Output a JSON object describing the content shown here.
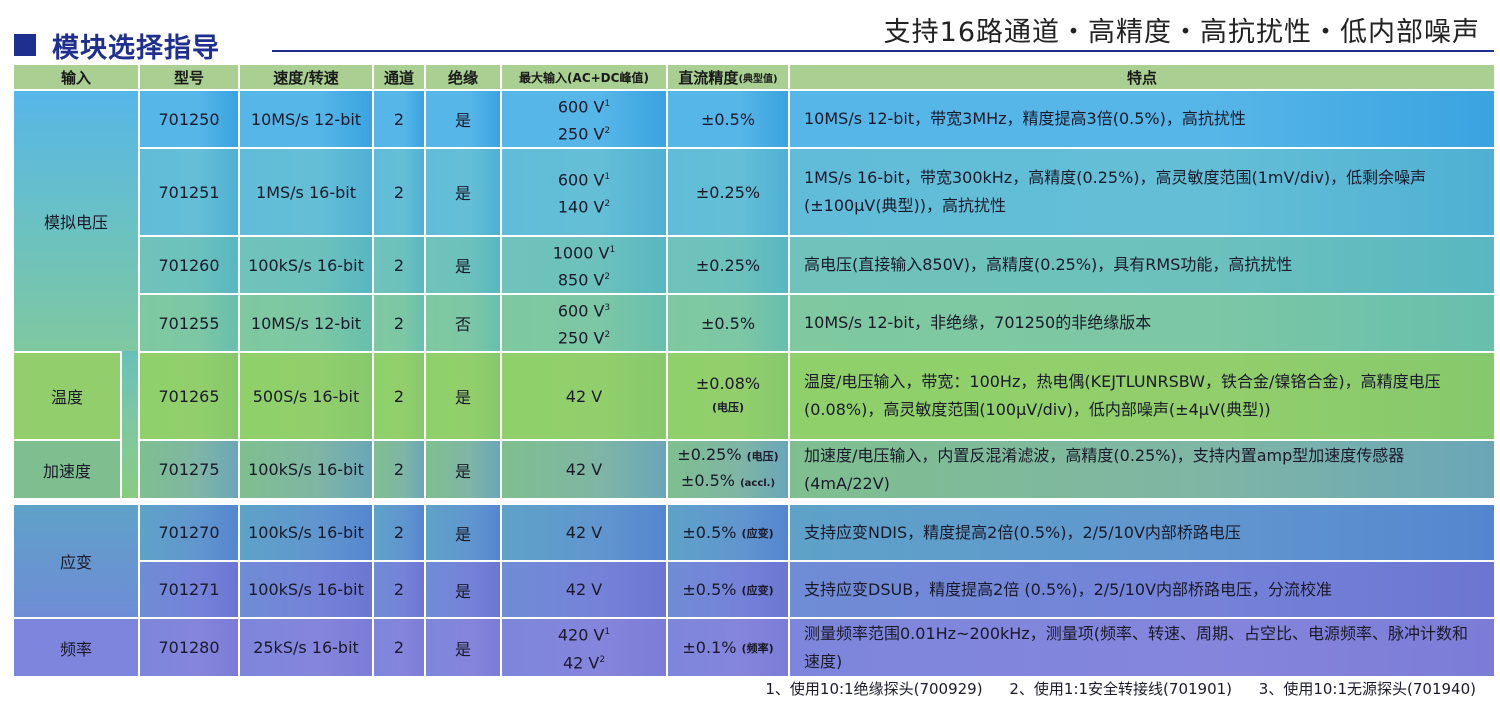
{
  "header": {
    "title": "模块选择指导",
    "slogan": "支持16路通道・高精度・高抗扰性・低内部噪声"
  },
  "columns": [
    "输入",
    "型号",
    "速度/转速",
    "通道",
    "绝缘",
    "最大输入(AC+DC峰值)",
    "直流精度",
    "(典型值)",
    "特点"
  ],
  "inputs": {
    "analog": "模拟电压",
    "temp": "温度",
    "accel": "加速度",
    "strain": "应变",
    "freq": "频率"
  },
  "rows": [
    {
      "model": "701250",
      "speed": "10MS/s 12-bit",
      "ch": "2",
      "iso": "是",
      "max1": "600 V",
      "sup1": "1",
      "max2": "250 V",
      "sup2": "2",
      "acc": "±0.5%",
      "feat": "10MS/s 12-bit，带宽3MHz，精度提高3倍(0.5%)，高抗扰性"
    },
    {
      "model": "701251",
      "speed": "1MS/s 16-bit",
      "ch": "2",
      "iso": "是",
      "max1": "600 V",
      "sup1": "1",
      "max2": "140 V",
      "sup2": "2",
      "acc": "±0.25%",
      "feat": "1MS/s 16-bit，带宽300kHz，高精度(0.25%)，高灵敏度范围(1mV/div)，低剩余噪声(±100μV(典型))，高抗扰性"
    },
    {
      "model": "701260",
      "speed": "100kS/s 16-bit",
      "ch": "2",
      "iso": "是",
      "max1": "1000 V",
      "sup1": "1",
      "max2": "850 V",
      "sup2": "2",
      "acc": "±0.25%",
      "feat": "高电压(直接输入850V)，高精度(0.25%)，具有RMS功能，高抗扰性"
    },
    {
      "model": "701255",
      "speed": "10MS/s 12-bit",
      "ch": "2",
      "iso": "否",
      "max1": "600 V",
      "sup1": "3",
      "max2": "250 V",
      "sup2": "2",
      "acc": "±0.5%",
      "feat": "10MS/s 12-bit，非绝缘，701250的非绝缘版本"
    },
    {
      "model": "701265",
      "speed": "500S/s 16-bit",
      "ch": "2",
      "iso": "是",
      "max": "42 V",
      "acc": "±0.08%",
      "accNote": "(电压)",
      "feat": "温度/电压输入，带宽：100Hz，热电偶(KEJTLUNRSBW，铁合金/镍铬合金)，高精度电压(0.08%)，高灵敏度范围(100μV/div)，低内部噪声(±4μV(典型))"
    },
    {
      "model": "701275",
      "speed": "100kS/s 16-bit",
      "ch": "2",
      "iso": "是",
      "max": "42 V",
      "acc1": "±0.25%",
      "acc1Note": "(电压)",
      "acc2": "±0.5%",
      "acc2Note": "(accl.)",
      "feat": "加速度/电压输入，内置反混淆滤波，高精度(0.25%)，支持内置amp型加速度传感器(4mA/22V)"
    },
    {
      "model": "701270",
      "speed": "100kS/s 16-bit",
      "ch": "2",
      "iso": "是",
      "max": "42 V",
      "acc": "±0.5%",
      "accNote": "(应变)",
      "feat": "支持应变NDIS，精度提高2倍(0.5%)，2/5/10V内部桥路电压"
    },
    {
      "model": "701271",
      "speed": "100kS/s 16-bit",
      "ch": "2",
      "iso": "是",
      "max": "42 V",
      "acc": "±0.5%",
      "accNote": "(应变)",
      "feat": "支持应变DSUB，精度提高2倍 (0.5%)，2/5/10V内部桥路电压，分流校准"
    },
    {
      "model": "701280",
      "speed": "25kS/s 16-bit",
      "ch": "2",
      "iso": "是",
      "max1": "420 V",
      "sup1": "1",
      "max2": "42 V",
      "sup2": "2",
      "acc": "±0.1%",
      "accNote": "(频率)",
      "feat": "测量频率范围0.01Hz~200kHz，测量项(频率、转速、周期、占空比、电源频率、脉冲计数和速度)"
    }
  ],
  "footnotes": [
    "1、使用10:1绝缘探头(700929)",
    "2、使用1:1安全转接线(701901)",
    "3、使用10:1无源探头(701940)"
  ]
}
